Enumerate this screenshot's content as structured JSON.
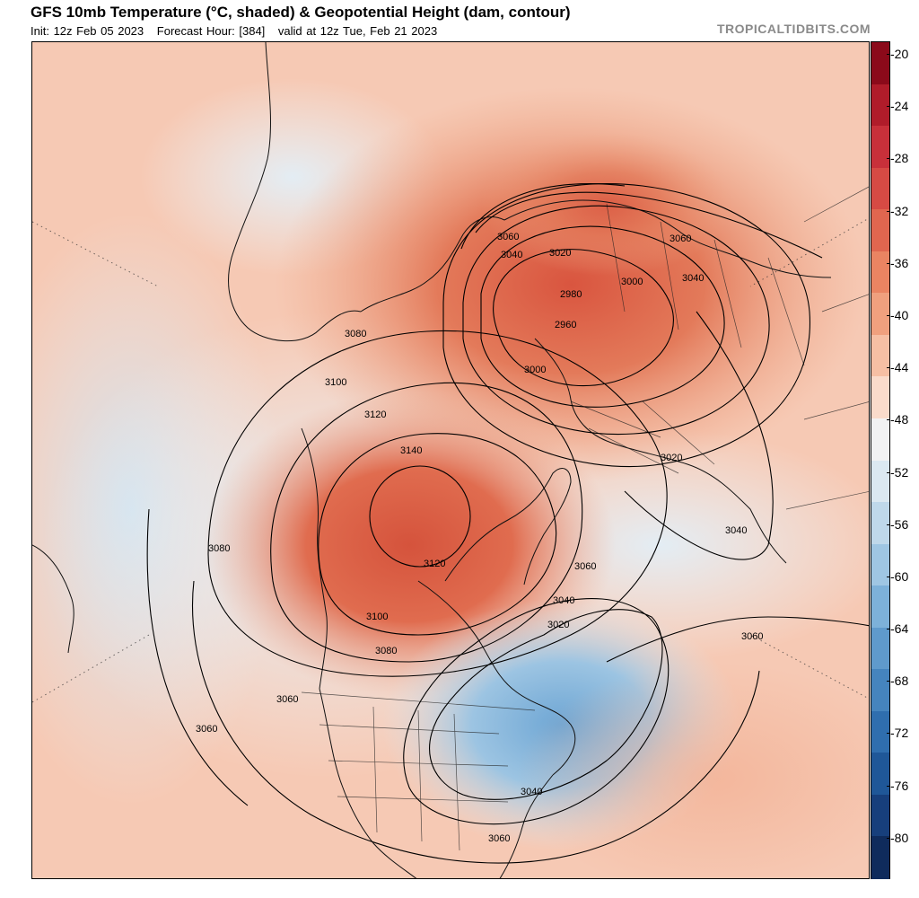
{
  "header": {
    "title": "GFS 10mb Temperature (°C, shaded) & Geopotential Height (dam, contour)",
    "init": "Init: 12z Feb 05 2023",
    "forecast_hour": "Forecast Hour: [384]",
    "valid": "valid at 12z Tue, Feb 21 2023",
    "brand": "TROPICALTIDBITS.COM"
  },
  "colorbar": {
    "ticks": [
      "-20",
      "-24",
      "-28",
      "-32",
      "-36",
      "-40",
      "-44",
      "-48",
      "-52",
      "-56",
      "-60",
      "-64",
      "-68",
      "-72",
      "-76",
      "-80"
    ],
    "colors": [
      "#8b0a1a",
      "#b01c2a",
      "#c8303a",
      "#d64a44",
      "#e0664f",
      "#ea8462",
      "#f0a07e",
      "#f6bfa4",
      "#fadbcb",
      "#f2f2f3",
      "#dbe8f1",
      "#bfd8ea",
      "#9fc6e3",
      "#7db1d9",
      "#5f9acc",
      "#4584be",
      "#2f6eae",
      "#1f5798",
      "#173f7c",
      "#0f2b5c"
    ]
  },
  "map": {
    "contour_labels": [
      {
        "text": "3060",
        "kind": "gph"
      },
      {
        "text": "3040",
        "kind": "gph"
      },
      {
        "text": "3020",
        "kind": "gph"
      },
      {
        "text": "3060",
        "kind": "gph"
      },
      {
        "text": "3040",
        "kind": "gph"
      },
      {
        "text": "3000",
        "kind": "gph"
      },
      {
        "text": "2980",
        "kind": "gph"
      },
      {
        "text": "2960",
        "kind": "gph"
      },
      {
        "text": "3000",
        "kind": "gph"
      },
      {
        "text": "3080",
        "kind": "gph"
      },
      {
        "text": "3100",
        "kind": "gph"
      },
      {
        "text": "3120",
        "kind": "gph"
      },
      {
        "text": "3140",
        "kind": "gph"
      },
      {
        "text": "3020",
        "kind": "gph"
      },
      {
        "text": "3040",
        "kind": "gph"
      },
      {
        "text": "3080",
        "kind": "gph"
      },
      {
        "text": "3120",
        "kind": "gph"
      },
      {
        "text": "3060",
        "kind": "gph"
      },
      {
        "text": "3040",
        "kind": "gph"
      },
      {
        "text": "3020",
        "kind": "gph"
      },
      {
        "text": "3100",
        "kind": "gph"
      },
      {
        "text": "3080",
        "kind": "gph"
      },
      {
        "text": "3060",
        "kind": "gph"
      },
      {
        "text": "3060",
        "kind": "gph"
      },
      {
        "text": "3060",
        "kind": "gph"
      },
      {
        "text": "3040",
        "kind": "gph"
      },
      {
        "text": "3060",
        "kind": "gph"
      }
    ]
  }
}
